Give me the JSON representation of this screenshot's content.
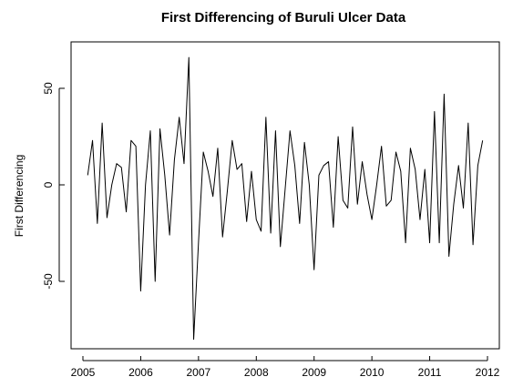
{
  "chart_data": {
    "type": "line",
    "title": "First Differencing of Buruli Ulcer Data",
    "xlabel": "",
    "ylabel": "First Differencing",
    "xlim": [
      2005,
      2012
    ],
    "ylim": [
      -85,
      70
    ],
    "x_ticks": [
      2005,
      2006,
      2007,
      2008,
      2009,
      2010,
      2011,
      2012
    ],
    "x_tick_labels": [
      "2005",
      "2006",
      "2007",
      "2008",
      "2009",
      "2010",
      "2011",
      "2012"
    ],
    "y_ticks": [
      -50,
      0,
      50
    ],
    "y_tick_labels": [
      "-50",
      "0",
      "50"
    ],
    "grid": false,
    "x_start": 2005.083,
    "x_step": 0.08333,
    "series": [
      {
        "values": [
          5,
          23,
          -20,
          32,
          -17,
          0,
          11,
          9,
          -14,
          23,
          20,
          -55,
          0,
          28,
          -50,
          29,
          5,
          -26,
          13,
          35,
          11,
          66,
          -80,
          -30,
          17,
          7,
          -6,
          19,
          -27,
          -3,
          23,
          8,
          11,
          -19,
          7,
          -18,
          -24,
          35,
          -25,
          28,
          -32,
          -2,
          28,
          10,
          -20,
          22,
          0,
          -44,
          5,
          10,
          12,
          -22,
          25,
          -8,
          -12,
          30,
          -10,
          12,
          -5,
          -18,
          0,
          20,
          -11,
          -8,
          17,
          7,
          -30,
          19,
          8,
          -18,
          8,
          -30,
          38,
          -30,
          47,
          -37,
          -10,
          10,
          -12,
          32,
          -31,
          10,
          23
        ]
      }
    ]
  }
}
